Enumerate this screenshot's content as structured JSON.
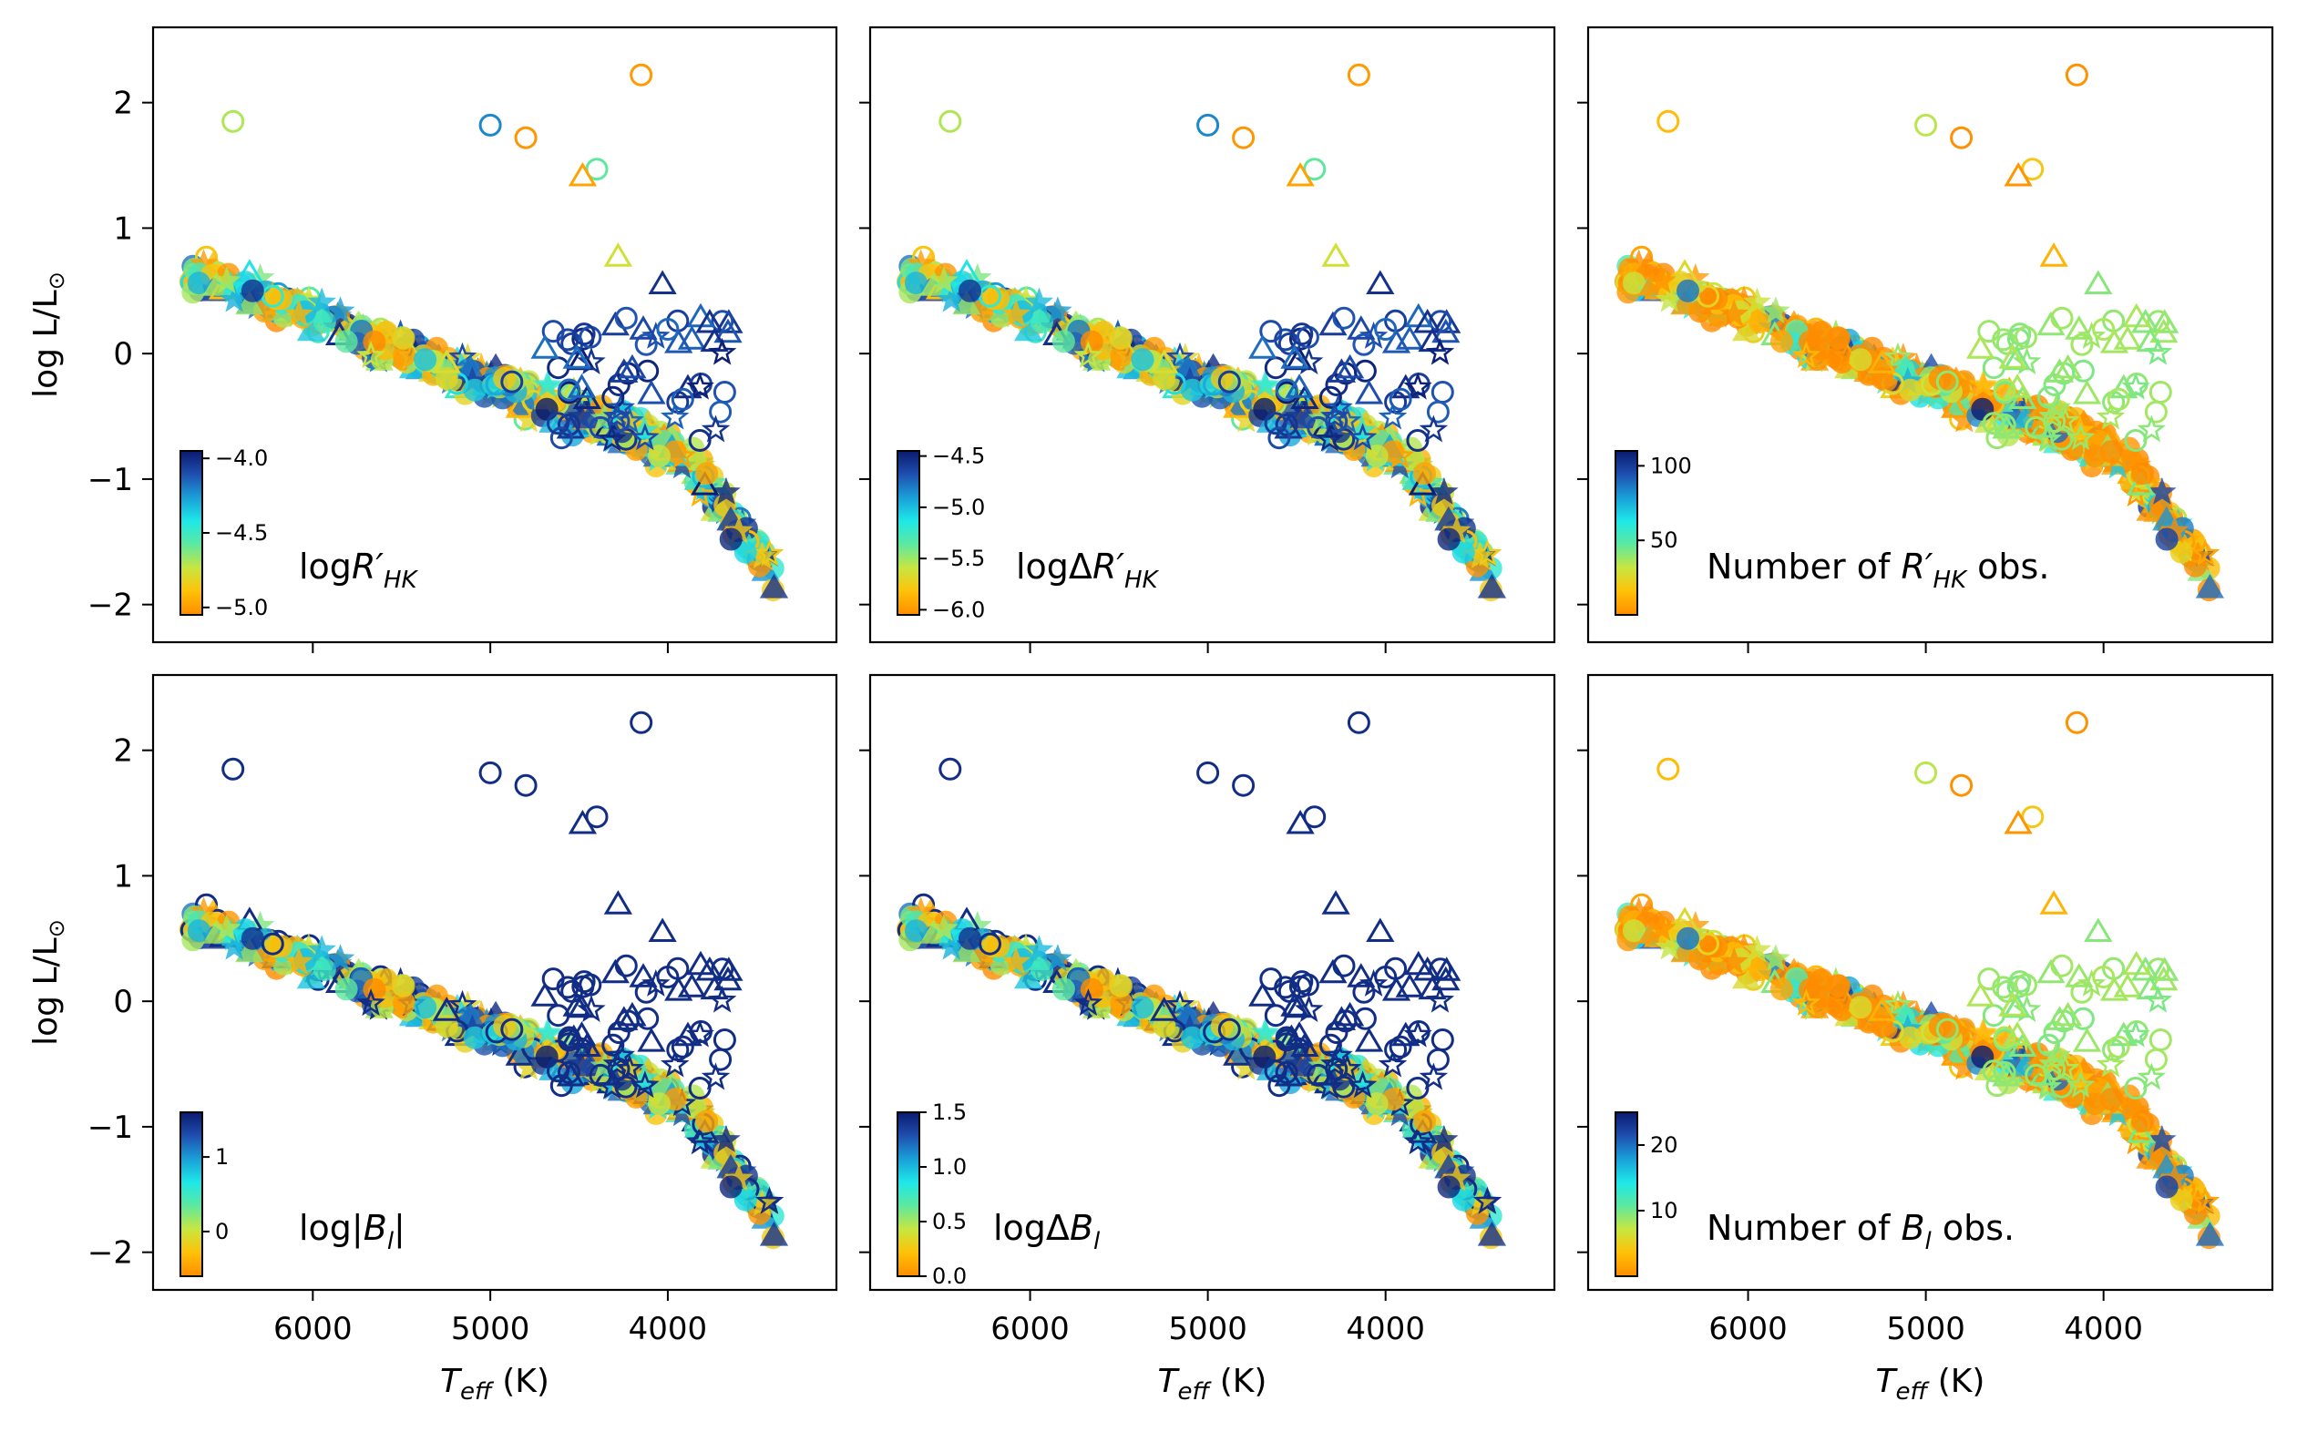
{
  "chart_data": {
    "type": "scatter",
    "figure": "Grid of six log L/L_sun vs T_eff scatter panels",
    "x": {
      "label_main": "T",
      "label_sub": "eff",
      "label_unit": " (K)",
      "ticks": [
        6000,
        5000,
        4000
      ],
      "tick_labels": [
        "6000",
        "5000",
        "4000"
      ],
      "lim": [
        6900,
        3050
      ],
      "inverted": true
    },
    "y": {
      "label_prefix": "log L/L",
      "label_symbol": "⊙",
      "ticks": [
        2,
        1,
        0,
        -1,
        -2
      ],
      "tick_labels": [
        "2",
        "1",
        "0",
        "−1",
        "−2"
      ],
      "lim": [
        -2.3,
        2.6
      ]
    },
    "markers": {
      "circle": "filled/open circles",
      "triangle": "triangles",
      "star": "stars"
    },
    "colormap": [
      "#ff8c00",
      "#ffc107",
      "#c8e640",
      "#5ee89e",
      "#1ee8e8",
      "#1aa0d8",
      "#1f4fb0",
      "#0a1a6e"
    ],
    "panels": [
      {
        "id": "rhk",
        "colorbar_label": "logR′HK",
        "label_base": "log",
        "label_italic": "R′",
        "label_sub": "HK",
        "label_tail": "",
        "cb_ticks": [
          "−4.0",
          "−4.5",
          "−5.0"
        ],
        "cb_tick_values": [
          -4.0,
          -4.5,
          -5.0
        ],
        "cb_range": [
          -5.05,
          -3.95
        ]
      },
      {
        "id": "drhk",
        "colorbar_label": "logΔR′HK",
        "label_base": "logΔ",
        "label_italic": "R′",
        "label_sub": "HK",
        "label_tail": "",
        "cb_ticks": [
          "−4.5",
          "−5.0",
          "−5.5",
          "−6.0"
        ],
        "cb_tick_values": [
          -4.5,
          -5.0,
          -5.5,
          -6.0
        ],
        "cb_range": [
          -6.05,
          -4.45
        ]
      },
      {
        "id": "nrhk",
        "colorbar_label": "Number of R′HK obs.",
        "label_base": "Number of ",
        "label_italic": "R′",
        "label_sub": "HK",
        "label_tail": " obs.",
        "cb_ticks": [
          "100",
          "50"
        ],
        "cb_tick_values": [
          100,
          50
        ],
        "cb_range": [
          0,
          110
        ]
      },
      {
        "id": "bl",
        "colorbar_label": "log|Bl|",
        "label_base": "log|",
        "label_italic": "B",
        "label_sub": "l",
        "label_tail": "|",
        "cb_ticks": [
          "1",
          "0"
        ],
        "cb_tick_values": [
          1,
          0
        ],
        "cb_range": [
          -0.6,
          1.6
        ]
      },
      {
        "id": "dbl",
        "colorbar_label": "logΔBl",
        "label_base": "logΔ",
        "label_italic": "B",
        "label_sub": "l",
        "label_tail": "",
        "cb_ticks": [
          "1.5",
          "1.0",
          "0.5",
          "0.0"
        ],
        "cb_tick_values": [
          1.5,
          1.0,
          0.5,
          0.0
        ],
        "cb_range": [
          0,
          1.5
        ]
      },
      {
        "id": "nbl",
        "colorbar_label": "Number of Bl obs.",
        "label_base": "Number of ",
        "label_italic": "B",
        "label_sub": "l",
        "label_tail": " obs.",
        "cb_ticks": [
          "20",
          "10"
        ],
        "cb_tick_values": [
          20,
          10
        ],
        "cb_range": [
          0,
          25
        ]
      }
    ],
    "outliers": [
      {
        "teff": 6450,
        "logl": 1.85,
        "marker": "circle"
      },
      {
        "teff": 5000,
        "logl": 1.82,
        "marker": "circle"
      },
      {
        "teff": 4800,
        "logl": 1.72,
        "marker": "circle"
      },
      {
        "teff": 4150,
        "logl": 2.22,
        "marker": "circle"
      },
      {
        "teff": 4400,
        "logl": 1.47,
        "marker": "circle"
      },
      {
        "teff": 4480,
        "logl": 1.41,
        "marker": "triangle"
      },
      {
        "teff": 4030,
        "logl": 0.55,
        "marker": "triangle"
      },
      {
        "teff": 4280,
        "logl": 0.77,
        "marker": "triangle"
      }
    ]
  }
}
